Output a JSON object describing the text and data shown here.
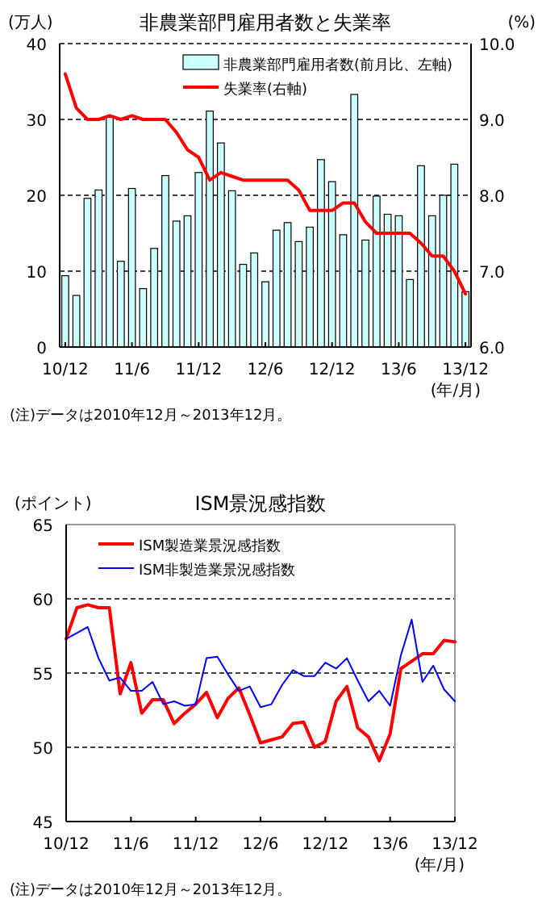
{
  "chart_data": [
    {
      "type": "bar",
      "title": "非農業部門雇用者数と失業率",
      "ylabel": "(万人)",
      "y2label": "(%)",
      "xlabel": "(年/月)",
      "categories": [
        "10/12",
        null,
        null,
        null,
        null,
        null,
        "11/6",
        null,
        null,
        null,
        null,
        null,
        "11/12",
        null,
        null,
        null,
        null,
        null,
        "12/6",
        null,
        null,
        null,
        null,
        null,
        "12/12",
        null,
        null,
        null,
        null,
        null,
        "13/6",
        null,
        null,
        null,
        null,
        null,
        "13/12"
      ],
      "series": [
        {
          "name": "非農業部門雇用者数(前月比、左軸)",
          "type": "bar",
          "color": "#ccffff",
          "values": [
            9.4,
            6.8,
            19.6,
            20.7,
            30.3,
            11.3,
            20.9,
            7.7,
            13.0,
            22.6,
            16.6,
            17.3,
            23.0,
            31.1,
            26.9,
            20.6,
            10.9,
            12.4,
            8.6,
            15.4,
            16.4,
            13.9,
            15.8,
            24.7,
            21.8,
            14.8,
            33.3,
            14.1,
            19.9,
            17.5,
            17.3,
            8.9,
            23.9,
            17.3,
            20.0,
            24.1,
            7.3
          ]
        },
        {
          "name": "失業率(右軸)",
          "type": "line",
          "axis": "y2",
          "color": "#ff0000",
          "values": [
            9.6,
            9.15,
            9.0,
            9.0,
            9.05,
            9.0,
            9.05,
            9.0,
            9.0,
            9.0,
            8.83,
            8.6,
            8.5,
            8.2,
            8.3,
            8.25,
            8.2,
            8.2,
            8.2,
            8.2,
            8.2,
            8.07,
            7.8,
            7.8,
            7.8,
            7.9,
            7.9,
            7.65,
            7.5,
            7.5,
            7.5,
            7.5,
            7.37,
            7.2,
            7.2,
            7.0,
            6.7
          ]
        }
      ],
      "ylim": [
        0,
        40
      ],
      "yticks": [
        0,
        10,
        20,
        30,
        40
      ],
      "y2lim": [
        6,
        10
      ],
      "y2ticks": [
        {
          "value": 6,
          "label": "6.0"
        },
        {
          "value": 7,
          "label": "7.0"
        },
        {
          "value": 8,
          "label": "8.0"
        },
        {
          "value": 9,
          "label": "9.0"
        },
        {
          "value": 10,
          "label": "10.0"
        }
      ],
      "grid": "y",
      "legend": "top right",
      "annotations": [
        "(注)データは2010年12月～2013年12月。"
      ]
    },
    {
      "type": "line",
      "title": "ISM景況感指数",
      "ylabel": "(ポイント)",
      "xlabel": "(年/月)",
      "categories": [
        "10/12",
        null,
        null,
        null,
        null,
        null,
        "11/6",
        null,
        null,
        null,
        null,
        null,
        "11/12",
        null,
        null,
        null,
        null,
        null,
        "12/6",
        null,
        null,
        null,
        null,
        null,
        "12/12",
        null,
        null,
        null,
        null,
        null,
        "13/6",
        null,
        null,
        null,
        null,
        null,
        "13/12"
      ],
      "series": [
        {
          "name": "ISM製造業景況感指数",
          "color": "#ff0000",
          "values": [
            57.3,
            59.4,
            59.6,
            59.4,
            59.4,
            53.6,
            55.7,
            52.3,
            53.2,
            53.2,
            51.6,
            52.3,
            52.9,
            53.7,
            52.0,
            53.3,
            54.0,
            52.2,
            50.3,
            50.5,
            50.7,
            51.6,
            51.7,
            50.0,
            50.4,
            53.1,
            54.1,
            51.3,
            50.7,
            49.1,
            50.9,
            55.3,
            55.8,
            56.3,
            56.3,
            57.2,
            57.1
          ]
        },
        {
          "name": "ISM非製造業景況感指数",
          "color": "#0000ff",
          "values": [
            57.3,
            57.7,
            58.1,
            56.0,
            54.5,
            54.7,
            53.8,
            53.8,
            54.4,
            52.9,
            53.1,
            52.8,
            52.9,
            56.0,
            56.1,
            54.9,
            53.8,
            54.1,
            52.7,
            52.9,
            54.2,
            55.2,
            54.8,
            54.8,
            55.7,
            55.3,
            56.0,
            54.5,
            53.1,
            53.8,
            52.8,
            56.2,
            58.6,
            54.4,
            55.5,
            53.9,
            53.1
          ]
        }
      ],
      "ylim": [
        45,
        65
      ],
      "yticks": [
        45,
        50,
        55,
        60,
        65
      ],
      "grid": "y",
      "legend": "top left",
      "annotations": [
        "(注)データは2010年12月～2013年12月。"
      ]
    }
  ]
}
